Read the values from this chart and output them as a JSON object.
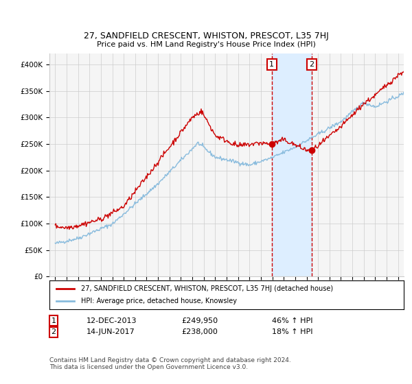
{
  "title": "27, SANDFIELD CRESCENT, WHISTON, PRESCOT, L35 7HJ",
  "subtitle": "Price paid vs. HM Land Registry's House Price Index (HPI)",
  "legend_property": "27, SANDFIELD CRESCENT, WHISTON, PRESCOT, L35 7HJ (detached house)",
  "legend_hpi": "HPI: Average price, detached house, Knowsley",
  "sale1_date": "12-DEC-2013",
  "sale1_price": 249950,
  "sale1_label": "1",
  "sale1_pct": "46% ↑ HPI",
  "sale2_date": "14-JUN-2017",
  "sale2_price": 238000,
  "sale2_label": "2",
  "sale2_pct": "18% ↑ HPI",
  "footer": "Contains HM Land Registry data © Crown copyright and database right 2024.\nThis data is licensed under the Open Government Licence v3.0.",
  "ylim": [
    0,
    420000
  ],
  "yticks": [
    0,
    50000,
    100000,
    150000,
    200000,
    250000,
    300000,
    350000,
    400000
  ],
  "ytick_labels": [
    "£0",
    "£50K",
    "£100K",
    "£150K",
    "£200K",
    "£250K",
    "£300K",
    "£350K",
    "£400K"
  ],
  "xstart": 1995,
  "xend": 2026,
  "xticks": [
    1995,
    1996,
    1997,
    1998,
    1999,
    2000,
    2001,
    2002,
    2003,
    2004,
    2005,
    2006,
    2007,
    2008,
    2009,
    2010,
    2011,
    2012,
    2013,
    2014,
    2015,
    2016,
    2017,
    2018,
    2019,
    2020,
    2021,
    2022,
    2023,
    2024,
    2025
  ],
  "property_color": "#cc0000",
  "hpi_color": "#88bbdd",
  "sale_dot_color": "#cc0000",
  "shade_color": "#ddeeff",
  "grid_color": "#cccccc",
  "sale1_x": 2013.95,
  "sale2_x": 2017.45,
  "bg_color": "#f5f5f5"
}
